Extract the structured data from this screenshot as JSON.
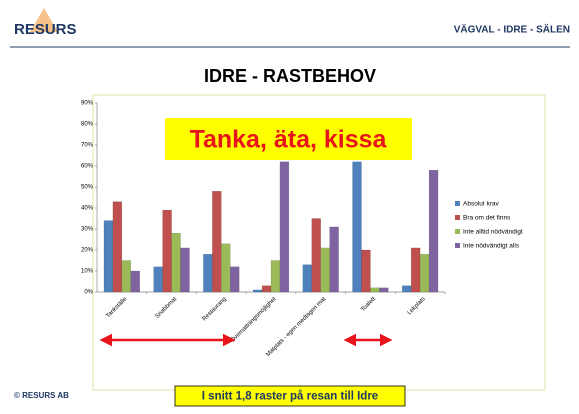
{
  "header": {
    "logo": "RESURS",
    "right": "VÄGVAL - IDRE - SÄLEN"
  },
  "footer": "© RESURS AB",
  "chart_data": {
    "type": "bar",
    "title": "IDRE - RASTBEHOV",
    "categories": [
      "Tankställe",
      "Snabbmat",
      "Restaurang",
      "Övernattningsmöjlighet",
      "Matplats - egen medtagen mat",
      "Toalett",
      "Lekplats"
    ],
    "series": [
      {
        "name": "Absolut krav",
        "color": "#4f81bd",
        "values": [
          34,
          12,
          18,
          1,
          13,
          62,
          3
        ]
      },
      {
        "name": "Bra om det finns",
        "color": "#c0504d",
        "values": [
          43,
          39,
          48,
          3,
          35,
          20,
          21
        ]
      },
      {
        "name": "Inte alltid nödvändigt",
        "color": "#9bbb59",
        "values": [
          15,
          28,
          23,
          15,
          21,
          2,
          18
        ]
      },
      {
        "name": "Inte nödvändigt alls",
        "color": "#8064a2",
        "values": [
          10,
          21,
          12,
          62,
          31,
          2,
          58
        ]
      }
    ],
    "ylim": [
      0,
      90
    ],
    "yticks": [
      {
        "value": 0,
        "label": "0%"
      },
      {
        "value": 10,
        "label": "10%"
      },
      {
        "value": 20,
        "label": "20%"
      },
      {
        "value": 30,
        "label": "30%"
      },
      {
        "value": 40,
        "label": "40%"
      },
      {
        "value": 50,
        "label": "50%"
      },
      {
        "value": 60,
        "label": "60%"
      },
      {
        "value": 70,
        "label": "70%"
      },
      {
        "value": 80,
        "label": "80%"
      },
      {
        "value": 90,
        "label": "90%"
      }
    ],
    "grid": false,
    "legend": "right",
    "annotations": [
      "Tanka, äta, kissa",
      "I snitt 1,8 raster på resan till Idre"
    ]
  }
}
